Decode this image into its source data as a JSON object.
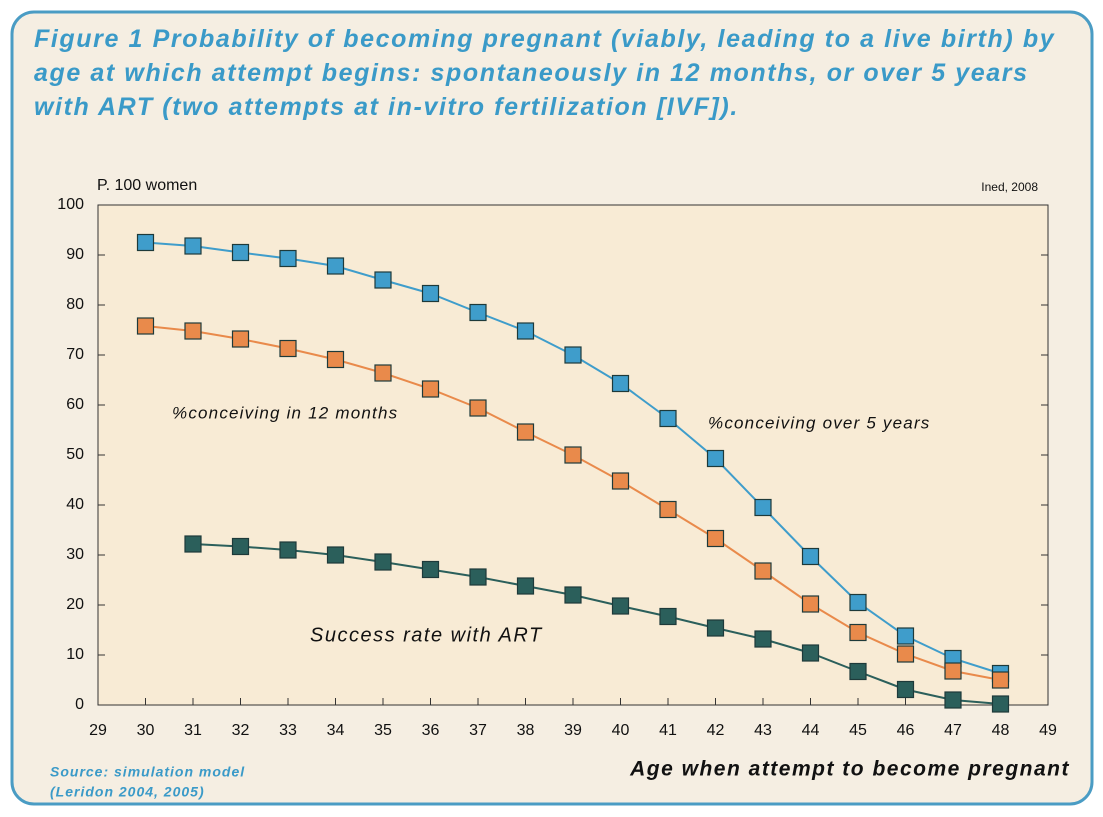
{
  "chart_data": {
    "type": "line",
    "title": "Figure 1 Probability of becoming pregnant (viably, leading to a live birth) by age at which attempt begins: spontaneously in 12 months, or over 5 years with ART (two attempts at in-vitro fertilization [IVF]).",
    "y_label": "P. 100 women",
    "credit": "Ined, 2008",
    "x_label": "Age when attempt to become pregnant",
    "source": [
      "Source: simulation model",
      "(Leridon 2004, 2005)"
    ],
    "x": [
      30,
      31,
      32,
      33,
      34,
      35,
      36,
      37,
      38,
      39,
      40,
      41,
      42,
      43,
      44,
      45,
      46,
      47,
      48
    ],
    "series": [
      {
        "name": "%conceiving over 5 years",
        "color": "#3f9dcb",
        "values": [
          92.5,
          91.8,
          90.5,
          89.3,
          87.8,
          85,
          82.3,
          78.5,
          74.8,
          70,
          64.3,
          57.3,
          49.3,
          39.5,
          29.7,
          20.5,
          13.8,
          9.3,
          6.3
        ]
      },
      {
        "name": "%conceiving in 12 months",
        "color": "#e98a4b",
        "values": [
          75.8,
          74.8,
          73.2,
          71.3,
          69.1,
          66.4,
          63.2,
          59.4,
          54.6,
          50,
          44.8,
          39.1,
          33.3,
          26.8,
          20.2,
          14.5,
          10.2,
          6.8,
          5.0
        ]
      },
      {
        "name": "Success rate with ART",
        "color": "#2b5f5b",
        "values": [
          null,
          32.2,
          31.7,
          31,
          30,
          28.6,
          27.1,
          25.6,
          23.8,
          22,
          19.8,
          17.7,
          15.4,
          13.2,
          10.4,
          6.7,
          3.1,
          1,
          0.2
        ]
      }
    ],
    "xlim": [
      29,
      49
    ],
    "xticks": [
      29,
      30,
      31,
      32,
      33,
      34,
      35,
      36,
      37,
      38,
      39,
      40,
      41,
      42,
      43,
      44,
      45,
      46,
      47,
      48,
      49
    ],
    "ylim": [
      0,
      100
    ],
    "yticks": [
      0,
      10,
      20,
      30,
      40,
      50,
      60,
      70,
      80,
      90,
      100
    ],
    "grid": false
  }
}
